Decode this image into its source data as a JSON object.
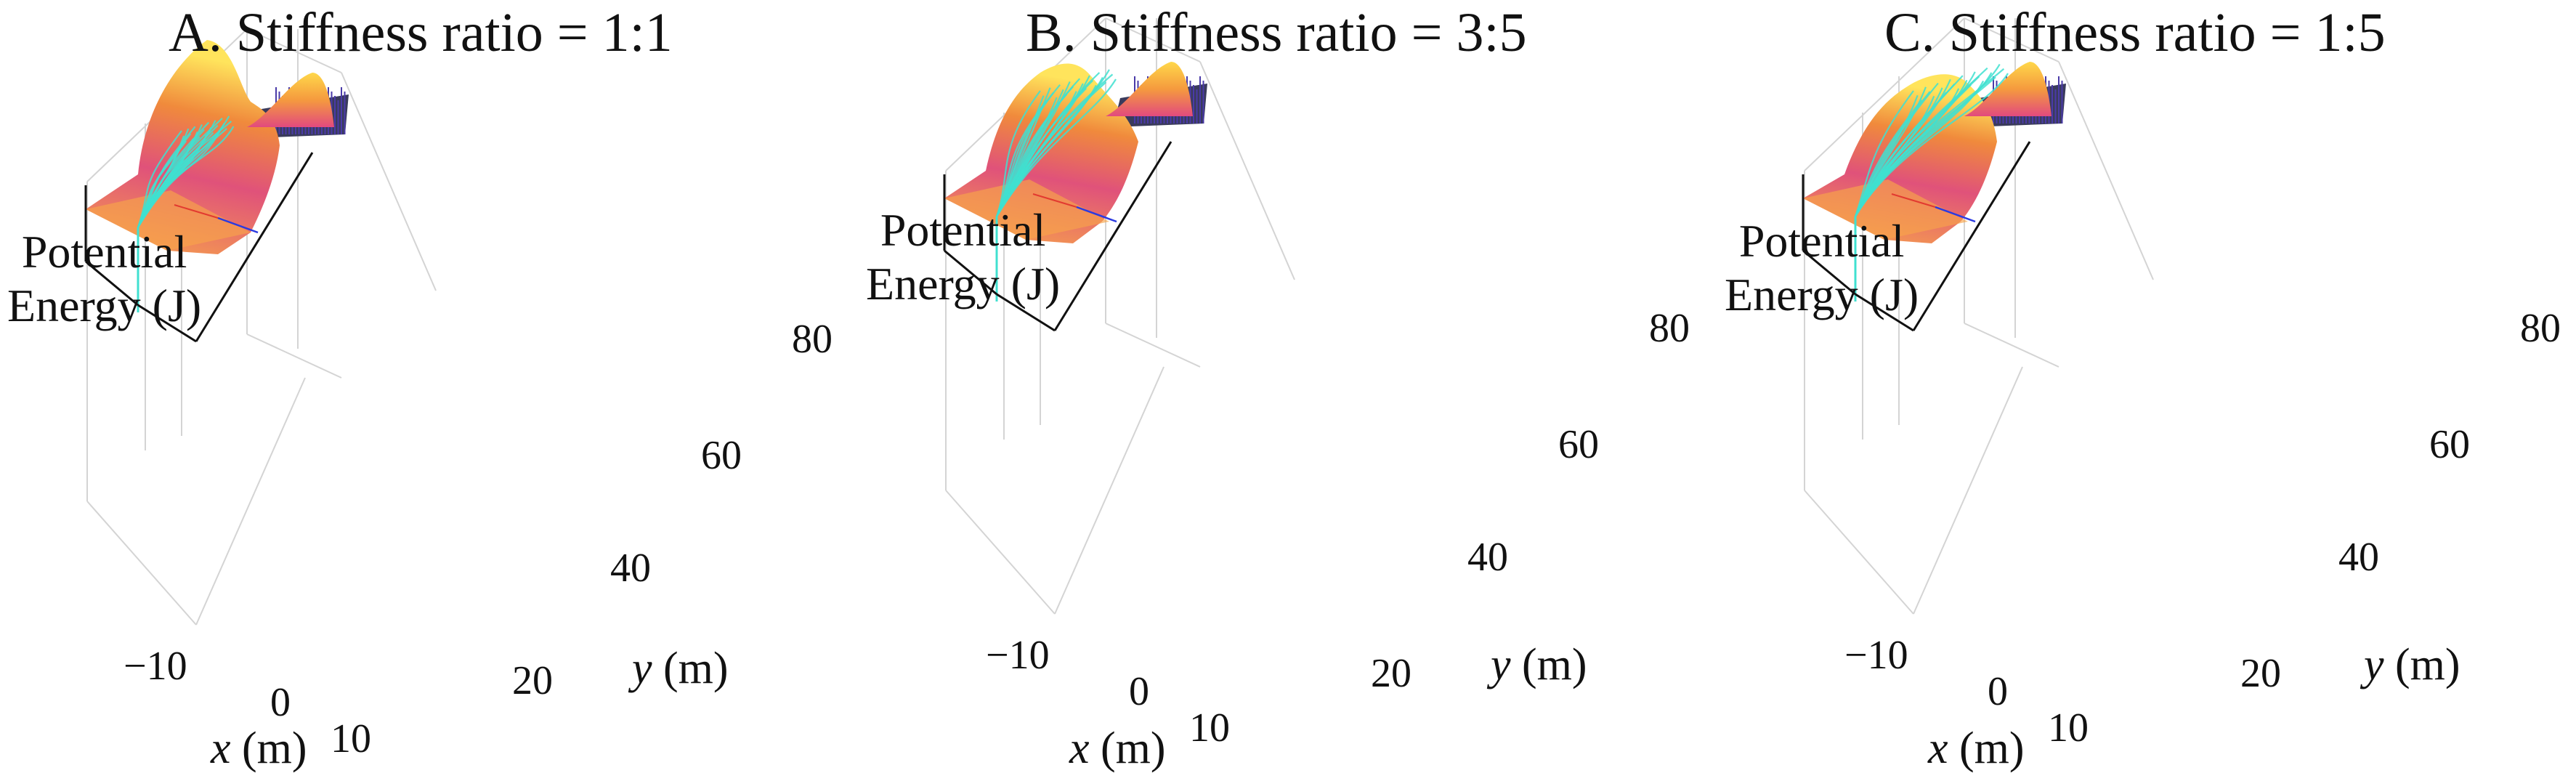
{
  "chart_data": [
    {
      "type": "surface",
      "title": "A. Stiffness ratio = 1:1",
      "zlabel_line1": "Potential",
      "zlabel_line2": "Energy (J)",
      "xlabel_var": "x",
      "xlabel_unit": "(m)",
      "ylabel_var": "y",
      "ylabel_unit": "(m)",
      "xticks": [
        "−10",
        "0",
        "10"
      ],
      "yticks": [
        "20",
        "40",
        "60",
        "80"
      ],
      "xlim": [
        -15,
        15
      ],
      "ylim": [
        10,
        80
      ],
      "series": [
        {
          "name": "",
          "kind": "trajectories",
          "color": "#40e0d0"
        }
      ],
      "spread": 0.55
    },
    {
      "type": "surface",
      "title": "B. Stiffness ratio = 3:5",
      "zlabel_line1": "Potential",
      "zlabel_line2": "Energy (J)",
      "xlabel_var": "x",
      "xlabel_unit": "(m)",
      "ylabel_var": "y",
      "ylabel_unit": "(m)",
      "xticks": [
        "−10",
        "0",
        "10"
      ],
      "yticks": [
        "20",
        "40",
        "60",
        "80"
      ],
      "xlim": [
        -15,
        15
      ],
      "ylim": [
        10,
        80
      ],
      "series": [
        {
          "name": "",
          "kind": "trajectories",
          "color": "#40e0d0"
        }
      ],
      "spread": 0.8
    },
    {
      "type": "surface",
      "title": "C. Stiffness ratio = 1:5",
      "zlabel_line1": "Potential",
      "zlabel_line2": "Energy (J)",
      "xlabel_var": "x",
      "xlabel_unit": "(m)",
      "ylabel_var": "y",
      "ylabel_unit": "(m)",
      "xticks": [
        "−10",
        "0",
        "10"
      ],
      "yticks": [
        "20",
        "40",
        "60",
        "80"
      ],
      "xlim": [
        -15,
        15
      ],
      "ylim": [
        10,
        80
      ],
      "series": [
        {
          "name": "",
          "kind": "trajectories",
          "color": "#40e0d0"
        }
      ],
      "spread": 1.0
    }
  ]
}
